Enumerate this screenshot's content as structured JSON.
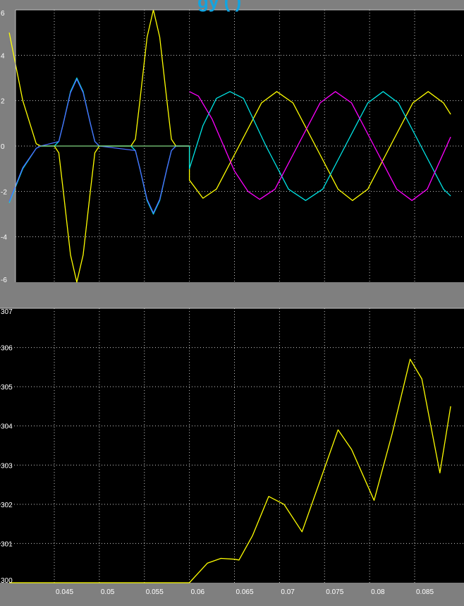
{
  "header": {
    "partial_title": "gy (      )"
  },
  "colors": {
    "panel_bg": "#000000",
    "frame_bg": "#7f7f7f",
    "axis_line": "#c0c0c0",
    "grid": "#c8c8c8",
    "tick_text": "#ffffff",
    "yellow": "#ffff00",
    "cyan": "#00e5e5",
    "magenta": "#ff00ff",
    "blue": "#4a6cff"
  },
  "chart_data": [
    {
      "type": "line",
      "name": "top-scope",
      "xlim": [
        0.04,
        0.089
      ],
      "ylim": [
        -6,
        6
      ],
      "yticks": [
        -6,
        -4,
        -2,
        0,
        2,
        4,
        6
      ],
      "ytick_labels": [
        "-6",
        "-4",
        "-2",
        "0",
        "2",
        "4",
        "6"
      ],
      "xticks": [
        0.045,
        0.05,
        0.055,
        0.06,
        0.065,
        0.07,
        0.075,
        0.08,
        0.085
      ],
      "grid": true,
      "series": [
        {
          "color": "yellow",
          "points": [
            [
              0.04,
              5.0
            ],
            [
              0.0415,
              2.0
            ],
            [
              0.043,
              0.1
            ],
            [
              0.0435,
              0
            ],
            [
              0.0445,
              0
            ],
            [
              0.045,
              0
            ],
            [
              0.0455,
              -0.3
            ],
            [
              0.046,
              -2.0
            ],
            [
              0.0468,
              -4.8
            ],
            [
              0.0475,
              -6.0
            ],
            [
              0.0482,
              -4.8
            ],
            [
              0.049,
              -2.0
            ],
            [
              0.0495,
              -0.3
            ],
            [
              0.05,
              0
            ],
            [
              0.0535,
              0
            ],
            [
              0.054,
              0.3
            ],
            [
              0.0545,
              2.0
            ],
            [
              0.0553,
              4.8
            ],
            [
              0.056,
              6.0
            ],
            [
              0.0567,
              4.8
            ],
            [
              0.0575,
              2.0
            ],
            [
              0.058,
              0.3
            ],
            [
              0.0585,
              0
            ],
            [
              0.06,
              0
            ],
            [
              0.06,
              -1.5
            ],
            [
              0.0615,
              -2.3
            ],
            [
              0.063,
              -1.9
            ],
            [
              0.0655,
              0
            ],
            [
              0.068,
              1.9
            ],
            [
              0.0697,
              2.4
            ],
            [
              0.0715,
              1.9
            ],
            [
              0.074,
              0
            ],
            [
              0.0765,
              -1.9
            ],
            [
              0.0781,
              -2.4
            ],
            [
              0.0798,
              -1.9
            ],
            [
              0.0823,
              0
            ],
            [
              0.0848,
              1.9
            ],
            [
              0.0865,
              2.4
            ],
            [
              0.0882,
              1.9
            ],
            [
              0.089,
              1.4
            ]
          ]
        },
        {
          "color": "cyan",
          "points": [
            [
              0.04,
              -2.5
            ],
            [
              0.0415,
              -1.0
            ],
            [
              0.043,
              -0.1
            ],
            [
              0.0435,
              0
            ],
            [
              0.0445,
              0
            ],
            [
              0.045,
              0
            ],
            [
              0.0455,
              0.2
            ],
            [
              0.046,
              1.0
            ],
            [
              0.0468,
              2.4
            ],
            [
              0.0475,
              3.0
            ],
            [
              0.0482,
              2.4
            ],
            [
              0.049,
              1.0
            ],
            [
              0.0495,
              0.2
            ],
            [
              0.05,
              0
            ],
            [
              0.0535,
              0
            ],
            [
              0.054,
              -0.2
            ],
            [
              0.0545,
              -1.0
            ],
            [
              0.0553,
              -2.4
            ],
            [
              0.056,
              -3.0
            ],
            [
              0.0567,
              -2.4
            ],
            [
              0.0575,
              -1.0
            ],
            [
              0.058,
              -0.2
            ],
            [
              0.0585,
              0
            ],
            [
              0.06,
              0
            ],
            [
              0.06,
              -1.0
            ],
            [
              0.0615,
              0.9
            ],
            [
              0.063,
              2.1
            ],
            [
              0.0645,
              2.4
            ],
            [
              0.066,
              2.1
            ],
            [
              0.0685,
              0
            ],
            [
              0.071,
              -1.9
            ],
            [
              0.0729,
              -2.4
            ],
            [
              0.0748,
              -1.9
            ],
            [
              0.0773,
              0
            ],
            [
              0.0798,
              1.9
            ],
            [
              0.0815,
              2.4
            ],
            [
              0.0832,
              1.9
            ],
            [
              0.0857,
              0
            ],
            [
              0.0882,
              -1.9
            ],
            [
              0.089,
              -2.2
            ]
          ]
        },
        {
          "color": "magenta",
          "points": [
            [
              0.06,
              2.4
            ],
            [
              0.061,
              2.2
            ],
            [
              0.0625,
              1.2
            ],
            [
              0.065,
              -1.1
            ],
            [
              0.0665,
              -2.0
            ],
            [
              0.0678,
              -2.35
            ],
            [
              0.0695,
              -1.9
            ],
            [
              0.072,
              0
            ],
            [
              0.0745,
              1.9
            ],
            [
              0.0762,
              2.4
            ],
            [
              0.078,
              1.9
            ],
            [
              0.0805,
              0
            ],
            [
              0.083,
              -1.9
            ],
            [
              0.0847,
              -2.4
            ],
            [
              0.0864,
              -1.9
            ],
            [
              0.089,
              0.4
            ]
          ]
        },
        {
          "color": "blue",
          "points": [
            [
              0.04,
              -2.45
            ],
            [
              0.0415,
              -0.95
            ],
            [
              0.043,
              -0.1
            ],
            [
              0.0435,
              0
            ],
            [
              0.0455,
              0.2
            ],
            [
              0.046,
              1.0
            ],
            [
              0.0468,
              2.35
            ],
            [
              0.0475,
              2.95
            ],
            [
              0.0482,
              2.35
            ],
            [
              0.049,
              1.0
            ],
            [
              0.0495,
              0.2
            ],
            [
              0.05,
              0
            ],
            [
              0.054,
              -0.2
            ],
            [
              0.0545,
              -1.0
            ],
            [
              0.0553,
              -2.35
            ],
            [
              0.056,
              -2.95
            ],
            [
              0.0567,
              -2.35
            ],
            [
              0.0575,
              -1.0
            ],
            [
              0.058,
              -0.2
            ],
            [
              0.0585,
              0
            ],
            [
              0.06,
              0
            ]
          ]
        },
        {
          "color": "green",
          "points": [
            [
              0.0435,
              0
            ],
            [
              0.0455,
              0
            ],
            [
              0.05,
              0
            ],
            [
              0.0535,
              0
            ],
            [
              0.0585,
              0
            ],
            [
              0.06,
              0
            ]
          ]
        }
      ]
    },
    {
      "type": "line",
      "name": "bottom-scope",
      "xlim": [
        0.04,
        0.089
      ],
      "ylim": [
        300,
        307
      ],
      "yticks": [
        300,
        301,
        302,
        303,
        304,
        305,
        306,
        307
      ],
      "ytick_labels": [
        "300",
        "301",
        "302",
        "303",
        "304",
        "305",
        "306",
        "307"
      ],
      "xticks": [
        0.045,
        0.05,
        0.055,
        0.06,
        0.065,
        0.07,
        0.075,
        0.08,
        0.085
      ],
      "xtick_labels": [
        "0.045",
        "0.05",
        "0.055",
        "0.06",
        "0.065",
        "0.07",
        "0.075",
        "0.08",
        "0.085"
      ],
      "grid": true,
      "series": [
        {
          "color": "yellow",
          "points": [
            [
              0.04,
              300.0
            ],
            [
              0.06,
              300.0
            ],
            [
              0.061,
              300.25
            ],
            [
              0.062,
              300.5
            ],
            [
              0.0635,
              300.62
            ],
            [
              0.065,
              300.6
            ],
            [
              0.0655,
              300.58
            ],
            [
              0.067,
              301.2
            ],
            [
              0.0688,
              302.2
            ],
            [
              0.0705,
              302.0
            ],
            [
              0.0725,
              301.3
            ],
            [
              0.0745,
              302.6
            ],
            [
              0.0765,
              303.9
            ],
            [
              0.078,
              303.4
            ],
            [
              0.0805,
              302.1
            ],
            [
              0.0825,
              303.8
            ],
            [
              0.0845,
              305.7
            ],
            [
              0.0858,
              305.2
            ],
            [
              0.0878,
              302.8
            ],
            [
              0.089,
              304.5
            ]
          ]
        }
      ]
    }
  ]
}
